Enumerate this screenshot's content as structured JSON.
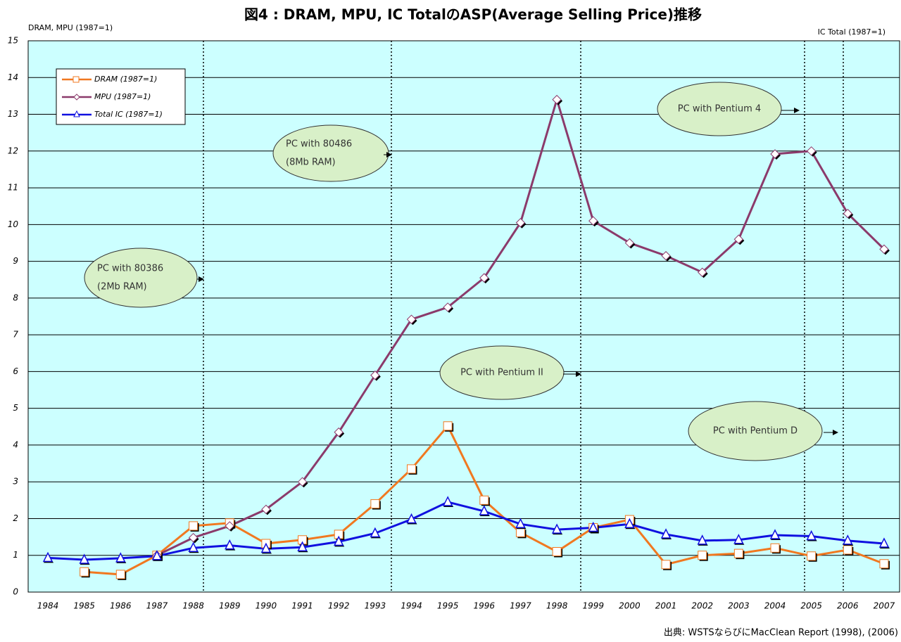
{
  "chart_data": {
    "type": "line",
    "title": "図4 : DRAM, MPU, IC TotalのASP(Average Selling Price)推移",
    "y_label": "DRAM, MPU (1987=1)",
    "y2_label": "IC Total (1987=1)",
    "source": "出典: WSTSならびにMacClean Report (1998), (2006)",
    "categories": [
      "1984",
      "1985",
      "1986",
      "1987",
      "1988",
      "1989",
      "1990",
      "1991",
      "1992",
      "1993",
      "1994",
      "1995",
      "1996",
      "1997",
      "1998",
      "1999",
      "2000",
      "2001",
      "2002",
      "2003",
      "2004",
      "2005",
      "2006",
      "2007"
    ],
    "series": [
      {
        "name": "DRAM (1987=1)",
        "color": "#f07820",
        "values": [
          null,
          0.55,
          0.48,
          1.0,
          1.8,
          1.88,
          1.32,
          1.42,
          1.57,
          2.4,
          3.35,
          4.52,
          2.5,
          1.62,
          1.1,
          1.75,
          1.97,
          0.75,
          1.0,
          1.05,
          1.2,
          0.98,
          1.15,
          0.77
        ]
      },
      {
        "name": "MPU (1987=1)",
        "color": "#8b3a6b",
        "values": [
          null,
          null,
          null,
          1.0,
          1.48,
          1.8,
          2.25,
          3.0,
          4.35,
          5.9,
          7.42,
          7.75,
          8.55,
          10.05,
          13.4,
          10.1,
          9.5,
          9.15,
          8.7,
          9.6,
          11.92,
          12.0,
          10.3,
          9.33
        ]
      },
      {
        "name": "Total IC (1987=1)",
        "color": "#1010e0",
        "values": [
          0.93,
          0.88,
          0.92,
          0.98,
          1.2,
          1.27,
          1.18,
          1.22,
          1.37,
          1.6,
          1.98,
          2.45,
          2.2,
          1.85,
          1.7,
          1.75,
          1.85,
          1.57,
          1.4,
          1.42,
          1.55,
          1.52,
          1.4,
          1.32
        ]
      }
    ],
    "ylim": [
      0,
      15
    ],
    "yticks": [
      0,
      1,
      2,
      3,
      4,
      5,
      6,
      7,
      8,
      9,
      10,
      11,
      12,
      13,
      14,
      15
    ],
    "grid": true,
    "legend": "upper left",
    "annotations": [
      [
        "PC with 80386",
        "(2Mb RAM)"
      ],
      [
        "PC with 80486",
        "(8Mb RAM)"
      ],
      [
        "PC with Pentium II"
      ],
      [
        "PC with Pentium 4"
      ],
      [
        "PC with Pentium D"
      ]
    ]
  }
}
